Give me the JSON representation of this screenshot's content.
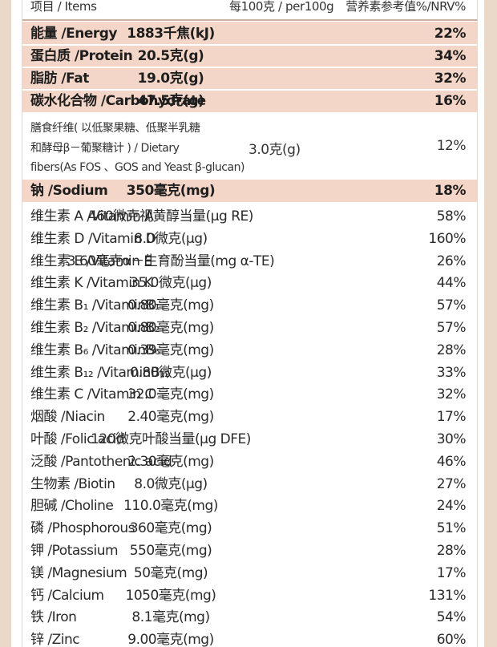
{
  "header": {
    "item": "项目 / Items",
    "per100g": "每100克 / per100g",
    "nrv": "营养素参考值%/NRV%"
  },
  "highlight_rows": [
    {
      "name": "能量 /Energy",
      "amount": "1883千焦(kJ)",
      "nrv": "22%"
    },
    {
      "name": "蛋白质 /Protein",
      "amount": "20.5克(g)",
      "nrv": "34%"
    },
    {
      "name": "脂肪 /Fat",
      "amount": "19.0克(g)",
      "nrv": "32%"
    },
    {
      "name": "碳水化合物 /Carbohydrate",
      "amount": "47.5克(g)",
      "nrv": "16%"
    }
  ],
  "fiber": {
    "line1": "膳食纤维( 以低聚果糖、低聚半乳糖",
    "line2": "和酵母β－葡聚糖计 ) / Dietary",
    "line3": "fibers(As FOS 、GOS and Yeast β-glucan)",
    "amount": "3.0克(g)",
    "nrv": "12%"
  },
  "sodium": {
    "name": "钠 /Sodium",
    "amount": "350毫克(mg)",
    "nrv": "18%"
  },
  "rows": [
    {
      "name": "维生素 A /Vitamin A",
      "amount": "460微克视黄醇当量(μg RE)",
      "nrv": "58%"
    },
    {
      "name": "维生素 D /Vitamin D",
      "amount": "8.0微克(μg)",
      "nrv": "160%"
    },
    {
      "name": "维生素 E /Vitamin E",
      "amount": "3.60毫克α－生育酚当量(mg α-TE)",
      "nrv": "26%"
    },
    {
      "name": "维生素 K /Vitamin K",
      "amount": "35.0微克(μg)",
      "nrv": "44%"
    },
    {
      "name": "维生素 B₁ /VitaminB₁",
      "amount": "0.80毫克(mg)",
      "nrv": "57%"
    },
    {
      "name": "维生素 B₂ /VitaminB₂",
      "amount": "0.80毫克(mg)",
      "nrv": "57%"
    },
    {
      "name": "维生素 B₆ /VitaminB₆",
      "amount": "0.39毫克(mg)",
      "nrv": "28%"
    },
    {
      "name": "维生素 B₁₂ /VitaminB₁₂",
      "amount": "0.80微克(μg)",
      "nrv": "33%"
    },
    {
      "name": "维生素 C /Vitamin C",
      "amount": "32.0毫克(mg)",
      "nrv": "32%"
    },
    {
      "name": "烟酸 /Niacin",
      "amount": "2.40毫克(mg)",
      "nrv": "17%"
    },
    {
      "name": "叶酸 /Folic acid",
      "amount": "120微克叶酸当量(μg DFE)",
      "nrv": "30%"
    },
    {
      "name": "泛酸 /Pantothenic acid",
      "amount": "2.30毫克(mg)",
      "nrv": "46%"
    },
    {
      "name": "生物素 /Biotin",
      "amount": "8.0微克(μg)",
      "nrv": "27%"
    },
    {
      "name": "胆碱 /Choline",
      "amount": "110.0毫克(mg)",
      "nrv": "24%"
    },
    {
      "name": "磷 /Phosphorous",
      "amount": "360毫克(mg)",
      "nrv": "51%"
    },
    {
      "name": "钾 /Potassium",
      "amount": "550毫克(mg)",
      "nrv": "28%"
    },
    {
      "name": "镁 /Magnesium",
      "amount": "50毫克(mg)",
      "nrv": "17%"
    },
    {
      "name": "钙 /Calcium",
      "amount": "1050毫克(mg)",
      "nrv": "131%"
    },
    {
      "name": "铁 /Iron",
      "amount": "8.1毫克(mg)",
      "nrv": "54%"
    },
    {
      "name": "锌 /Zinc",
      "amount": "9.00毫克(mg)",
      "nrv": "60%"
    }
  ],
  "colors": {
    "highlight": "#f4d6c8",
    "frame": "#ead8c9",
    "rule": "#c9b1a1"
  }
}
